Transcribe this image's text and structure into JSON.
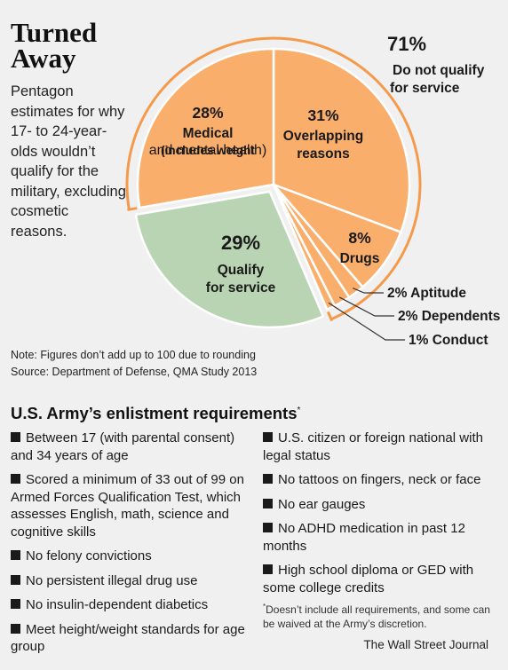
{
  "header": {
    "title": "Turned Away",
    "subtitle": "Pentagon estimates for why 17- to 24-year-olds wouldn’t qualify for the military, excluding cosmetic reasons."
  },
  "colors": {
    "orange": "#f9ae6c",
    "green": "#b8d4b2",
    "bracket": "#f59a4b",
    "leader": "#333333"
  },
  "chart_data": {
    "type": "pie",
    "slices": [
      {
        "label": "Overlapping reasons",
        "value": 31,
        "pct": "31%",
        "lines": [
          "Overlapping",
          "reasons"
        ],
        "color": "#f9ae6c"
      },
      {
        "label": "Drugs",
        "value": 8,
        "pct": "8%",
        "lines": [
          "Drugs"
        ],
        "color": "#f9ae6c"
      },
      {
        "label": "Aptitude",
        "value": 2,
        "pct": "2%",
        "lines": [],
        "color": "#f9ae6c"
      },
      {
        "label": "Dependents",
        "value": 2,
        "pct": "2%",
        "lines": [],
        "color": "#f9ae6c"
      },
      {
        "label": "Conduct",
        "value": 1,
        "pct": "1%",
        "lines": [],
        "color": "#f9ae6c"
      },
      {
        "label": "Qualify for service",
        "value": 29,
        "pct": "29%",
        "lines": [
          "Qualify",
          "for service"
        ],
        "color": "#b8d4b2"
      },
      {
        "label": "Medical (includes weight and mental health)",
        "value": 28,
        "pct": "28%",
        "lines": [
          "Medical",
          "(includes weight",
          "and mental health)"
        ],
        "color": "#f9ae6c"
      }
    ],
    "callout": {
      "pct": "71%",
      "lines": [
        "Do not qualify",
        "for service"
      ]
    },
    "small_labels": [
      "2% Aptitude",
      "2% Dependents",
      "1% Conduct"
    ]
  },
  "notes": {
    "note": "Note: Figures don’t add up to 100 due to rounding",
    "source": "Source: Department of Defense, QMA Study 2013"
  },
  "requirements": {
    "title": "U.S. Army’s enlistment requirements",
    "title_mark": "*",
    "left": [
      "Between 17 (with parental consent) and 34 years of age",
      "Scored a minimum of 33 out of 99 on Armed Forces Qualification Test, which assesses English, math, science and cognitive skills",
      "No felony convictions",
      "No persistent illegal drug use",
      "No insulin-dependent diabetics",
      "Meet height/weight standards for age group"
    ],
    "right": [
      "U.S. citizen or foreign national with legal status",
      "No tattoos on fingers, neck or face",
      "No ear gauges",
      "No ADHD medication in past 12 months",
      "High school diploma or GED with some college credits"
    ],
    "footnote_mark": "*",
    "footnote": "Doesn’t include all requirements, and some can be waived at the Army’s discretion."
  },
  "credit": "The Wall Street Journal"
}
